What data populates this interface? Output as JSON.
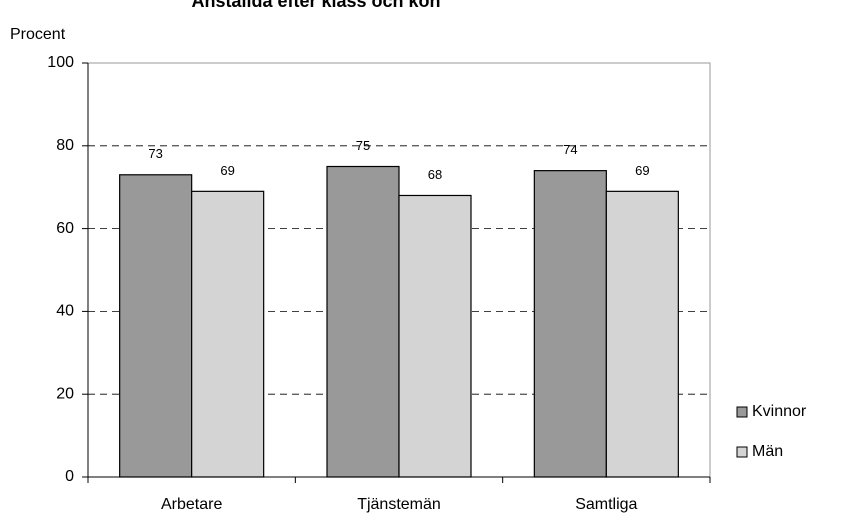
{
  "chart_data": {
    "type": "bar",
    "title": "Anställda efter klass och kön",
    "y_label": "Procent",
    "categories": [
      "Arbetare",
      "Tjänstemän",
      "Samtliga"
    ],
    "series": [
      {
        "name": "Kvinnor",
        "color": "#999999",
        "values": [
          73,
          75,
          74
        ]
      },
      {
        "name": "Män",
        "color": "#d4d4d4",
        "values": [
          69,
          68,
          69
        ]
      }
    ],
    "ylim": [
      0,
      100
    ],
    "yticks": [
      0,
      20,
      40,
      60,
      80,
      100
    ],
    "grid": true,
    "legend": "right"
  }
}
